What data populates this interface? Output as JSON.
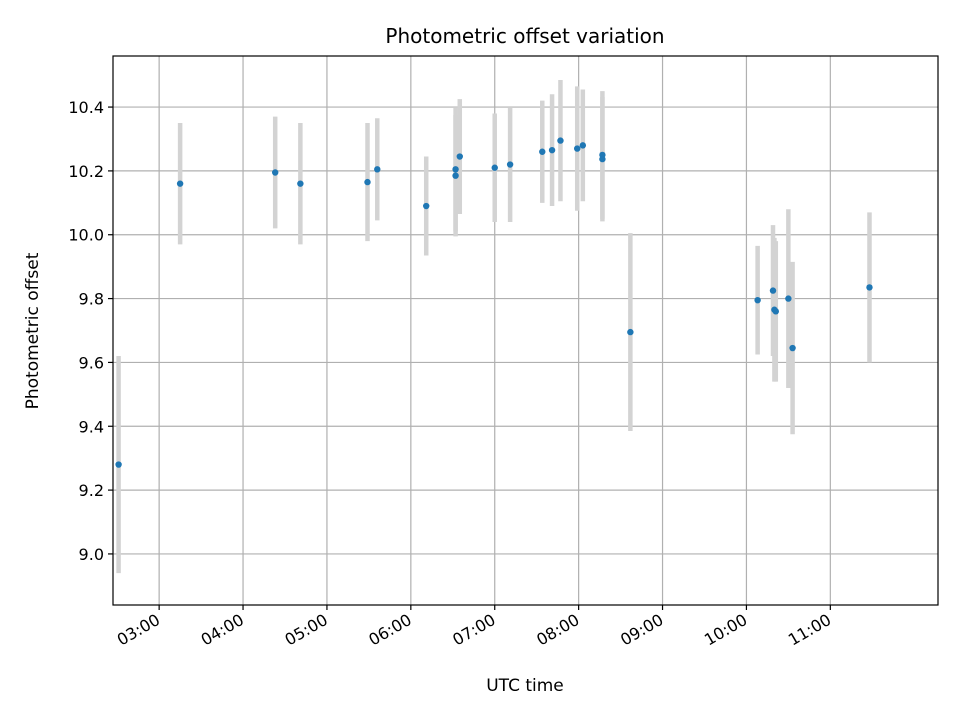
{
  "chart_data": {
    "type": "scatter",
    "title": "Photometric offset variation",
    "xlabel": "UTC time",
    "ylabel": "Photometric offset",
    "x_tick_labels": [
      "03:00",
      "04:00",
      "05:00",
      "06:00",
      "07:00",
      "08:00",
      "09:00",
      "10:00",
      "11:00"
    ],
    "y_tick_labels": [
      "9.0",
      "9.2",
      "9.4",
      "9.6",
      "9.8",
      "10.0",
      "10.2",
      "10.4"
    ],
    "xlim": [
      "02:27",
      "12:17"
    ],
    "ylim": [
      8.84,
      10.56
    ],
    "grid": true,
    "colors": {
      "point": "#1f77b4",
      "errorbar": "#d3d3d3",
      "grid": "#b0b0b0"
    },
    "series": [
      {
        "points": [
          {
            "x": "02:31",
            "y": 9.28,
            "err": 0.34
          },
          {
            "x": "03:15",
            "y": 10.16,
            "err": 0.19
          },
          {
            "x": "04:23",
            "y": 10.195,
            "err": 0.175
          },
          {
            "x": "04:41",
            "y": 10.16,
            "err": 0.19
          },
          {
            "x": "05:29",
            "y": 10.165,
            "err": 0.185
          },
          {
            "x": "05:36",
            "y": 10.205,
            "err": 0.16
          },
          {
            "x": "06:11",
            "y": 10.09,
            "err": 0.155
          },
          {
            "x": "06:32",
            "y": 10.185,
            "err": 0.19
          },
          {
            "x": "06:32",
            "y": 10.205,
            "err": 0.195
          },
          {
            "x": "06:35",
            "y": 10.245,
            "err": 0.18
          },
          {
            "x": "07:00",
            "y": 10.21,
            "err": 0.17
          },
          {
            "x": "07:11",
            "y": 10.22,
            "err": 0.18
          },
          {
            "x": "07:34",
            "y": 10.26,
            "err": 0.16
          },
          {
            "x": "07:41",
            "y": 10.265,
            "err": 0.175
          },
          {
            "x": "07:47",
            "y": 10.295,
            "err": 0.19
          },
          {
            "x": "07:59",
            "y": 10.27,
            "err": 0.195
          },
          {
            "x": "08:03",
            "y": 10.28,
            "err": 0.175
          },
          {
            "x": "08:17",
            "y": 10.25,
            "err": 0.2
          },
          {
            "x": "08:17",
            "y": 10.237,
            "err": 0.195
          },
          {
            "x": "08:37",
            "y": 9.695,
            "err": 0.31
          },
          {
            "x": "10:08",
            "y": 9.795,
            "err": 0.17
          },
          {
            "x": "10:19",
            "y": 9.825,
            "err": 0.205
          },
          {
            "x": "10:20",
            "y": 9.765,
            "err": 0.225
          },
          {
            "x": "10:21",
            "y": 9.76,
            "err": 0.22
          },
          {
            "x": "10:30",
            "y": 9.8,
            "err": 0.28
          },
          {
            "x": "10:33",
            "y": 9.645,
            "err": 0.27
          },
          {
            "x": "11:28",
            "y": 9.835,
            "err": 0.235
          }
        ]
      }
    ]
  }
}
